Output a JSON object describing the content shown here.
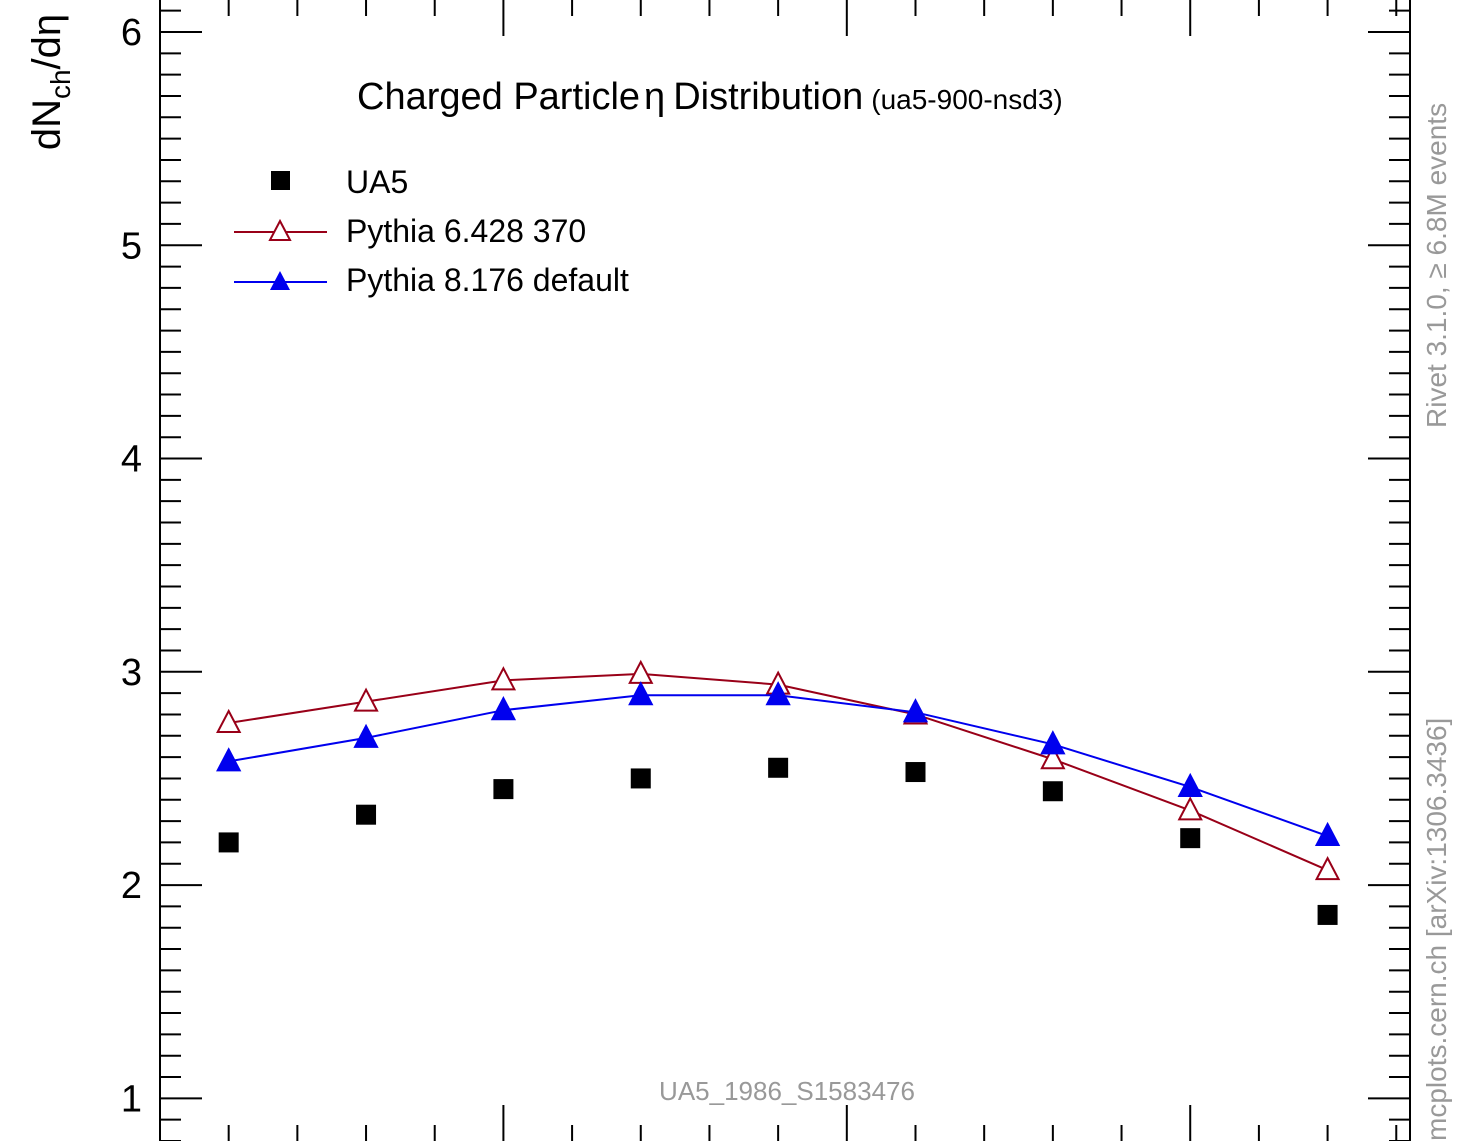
{
  "chart_data": {
    "type": "line",
    "title": "Charged Particle",
    "title_symbol": "η",
    "title_tail": "Distribution",
    "title_suffix": "(ua5-900-nsd3)",
    "ylabel": {
      "pre": "dN",
      "sub": "ch",
      "post": "/dη"
    },
    "ylim": [
      0.8,
      6.15
    ],
    "yticks": [
      "1",
      "2",
      "3",
      "4",
      "5",
      "6"
    ],
    "x": [
      0.1,
      0.3,
      0.5,
      0.7,
      0.9,
      1.1,
      1.3,
      1.5,
      1.7
    ],
    "xlim": [
      0,
      1.82
    ],
    "legend_position": "top-left",
    "series": [
      {
        "name": "UA5",
        "marker": "square",
        "color": "#000000",
        "line": false,
        "values": [
          2.2,
          2.33,
          2.45,
          2.5,
          2.55,
          2.53,
          2.44,
          2.22,
          1.86
        ]
      },
      {
        "name": "Pythia 6.428 370",
        "marker": "triangle-open",
        "color": "#990018",
        "line": true,
        "values": [
          2.76,
          2.86,
          2.96,
          2.99,
          2.94,
          2.8,
          2.59,
          2.35,
          2.07
        ]
      },
      {
        "name": "Pythia 8.176 default",
        "marker": "triangle-filled",
        "color": "#0000ee",
        "line": true,
        "values": [
          2.58,
          2.69,
          2.82,
          2.89,
          2.89,
          2.81,
          2.66,
          2.46,
          2.23
        ]
      }
    ]
  },
  "annotations": {
    "analysis_id": "UA5_1986_S1583476",
    "rivet_label": "Rivet 3.1.0, ≥ 6.8M events",
    "mcplots_label": "mcplots.cern.ch [arXiv:1306.3436]"
  }
}
